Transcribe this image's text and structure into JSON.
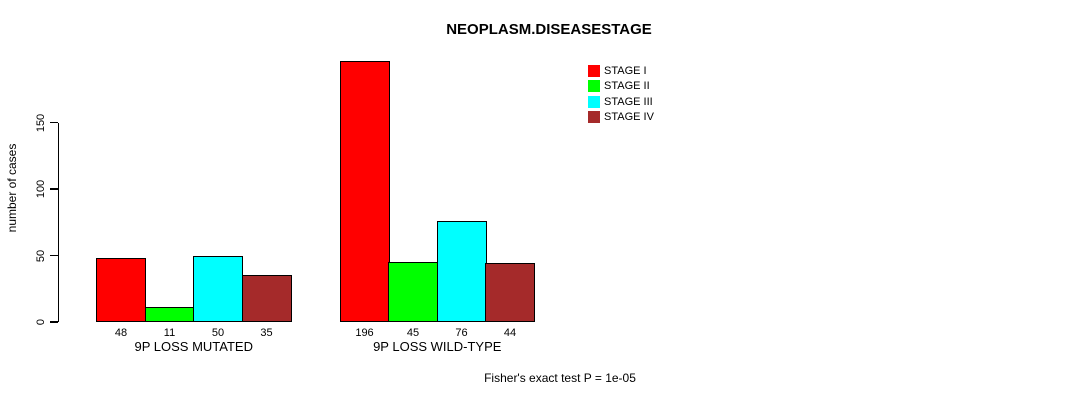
{
  "figure": {
    "title": "NEOPLASM.DISEASESTAGE",
    "footnote": "Fisher's exact test P = 1e-05"
  },
  "chart_data": {
    "type": "bar",
    "title": "NEOPLASM.DISEASESTAGE",
    "xlabel": "",
    "ylabel": "number of cases",
    "categories": [
      "9P LOSS MUTATED",
      "9P LOSS WILD-TYPE"
    ],
    "series": [
      {
        "name": "STAGE I",
        "color": "#FF0000",
        "values": [
          48,
          196
        ]
      },
      {
        "name": "STAGE II",
        "color": "#00FF00",
        "values": [
          11,
          45
        ]
      },
      {
        "name": "STAGE III",
        "color": "#00FFFF",
        "values": [
          50,
          76
        ]
      },
      {
        "name": "STAGE IV",
        "color": "#A52A2A",
        "values": [
          35,
          44
        ]
      }
    ],
    "bar_value_labels": true,
    "yticks": [
      0,
      50,
      100,
      150
    ],
    "ylim": [
      0,
      205
    ],
    "grid": false,
    "legend_position": "top-right",
    "annotation": "Fisher's exact test P = 1e-05"
  }
}
